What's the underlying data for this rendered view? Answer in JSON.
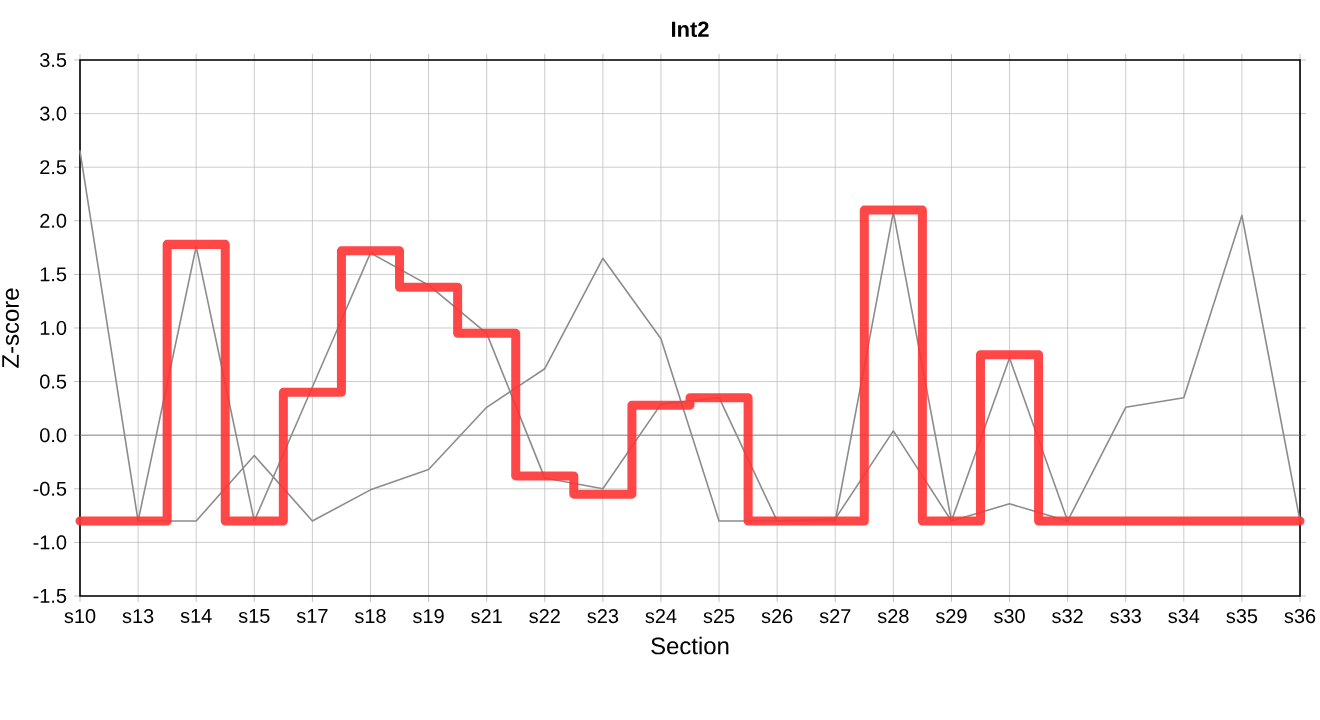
{
  "chart_data": {
    "type": "line",
    "title": "Int2",
    "xlabel": "Section",
    "ylabel": "Z-score",
    "categories": [
      "s10",
      "s13",
      "s14",
      "s15",
      "s17",
      "s18",
      "s19",
      "s21",
      "s22",
      "s23",
      "s24",
      "s25",
      "s26",
      "s27",
      "s28",
      "s29",
      "s30",
      "s32",
      "s33",
      "s34",
      "s35",
      "s36"
    ],
    "series": [
      {
        "type": "line",
        "color": "#8c8c8c",
        "values": [
          2.65,
          -0.8,
          1.76,
          -0.8,
          0.45,
          1.7,
          1.4,
          0.95,
          -0.4,
          -0.5,
          0.29,
          0.35,
          -0.8,
          -0.8,
          2.08,
          -0.8,
          0.72,
          -0.8,
          0.26,
          0.35,
          2.05,
          -0.8
        ]
      },
      {
        "type": "line",
        "color": "#8c8c8c",
        "values": [
          null,
          -0.8,
          -0.8,
          -0.19,
          -0.8,
          -0.51,
          -0.32,
          0.26,
          0.62,
          1.65,
          0.9,
          -0.8,
          -0.8,
          -0.78,
          0.04,
          -0.8,
          -0.64,
          -0.8,
          null,
          null,
          null,
          null
        ]
      },
      {
        "type": "step",
        "color": "#ff3333",
        "values": [
          -0.8,
          -0.8,
          1.78,
          -0.8,
          0.4,
          1.72,
          1.38,
          0.95,
          -0.38,
          -0.55,
          0.28,
          0.35,
          -0.8,
          -0.8,
          2.1,
          -0.8,
          0.75,
          -0.8,
          -0.8,
          -0.8,
          -0.8,
          -0.8
        ]
      }
    ],
    "ylim": [
      -1.5,
      3.5
    ],
    "yticks": [
      -1.5,
      {
        "value": -1,
        "label": "-1.0"
      },
      -0.5,
      {
        "value": 0,
        "label": "0.0"
      },
      0.5,
      {
        "value": 1,
        "label": "1.0"
      },
      1.5,
      {
        "value": 2,
        "label": "2.0"
      },
      2.5,
      {
        "value": 3,
        "label": "3.0"
      },
      3.5
    ],
    "ref_lines": [
      {
        "axis": "y",
        "value": 0,
        "color": "#808080"
      }
    ],
    "grid": true,
    "marker": "none",
    "line_style": "solid"
  }
}
